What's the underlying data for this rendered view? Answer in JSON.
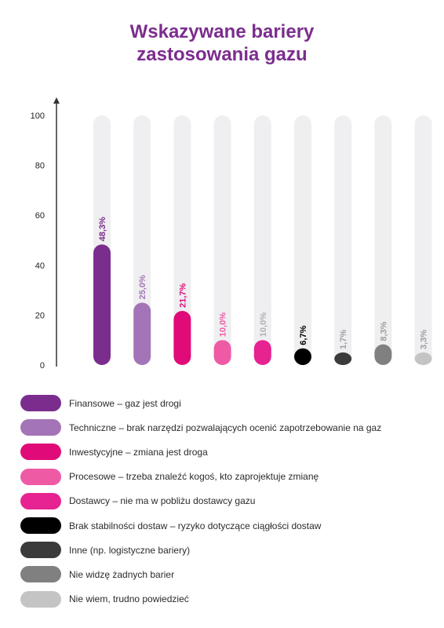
{
  "title": [
    "Wskazywane bariery",
    "zastosowania gazu"
  ],
  "chart_data": {
    "type": "bar",
    "title": "Wskazywane bariery zastosowania gazu",
    "ylim": [
      0,
      100
    ],
    "yticks": [
      0,
      20,
      40,
      60,
      80,
      100
    ],
    "grid": false,
    "legend_position": "bottom",
    "categories": [
      "Finansowe – gaz jest drogi",
      "Techniczne – brak narzędzi pozwalających ocenić zapotrzebowanie na gaz",
      "Inwestycyjne – zmiana jest droga",
      "Procesowe – trzeba znaleźć kogoś, kto zaprojektuje zmianę",
      "Dostawcy – nie ma w pobliżu dostawcy gazu",
      "Brak stabilności dostaw – ryzyko dotyczące ciągłości dostaw",
      "Inne (np. logistyczne bariery)",
      "Nie widzę żadnych barier",
      "Nie wiem, trudno powiedzieć"
    ],
    "values": [
      48.3,
      25.0,
      21.7,
      10.0,
      10.0,
      6.7,
      1.7,
      8.3,
      3.3
    ],
    "data_labels": [
      "48,3%",
      "25,0%",
      "21,7%",
      "10,0%",
      "10,0%",
      "6,7%",
      "1,7%",
      "8,3%",
      "3,3%"
    ],
    "colors": [
      "#7b2d8e",
      "#a474b8",
      "#e00b78",
      "#ef5aa5",
      "#e62391",
      "#000000",
      "#3b3b3b",
      "#808080",
      "#c4c4c4"
    ],
    "label_colors": [
      "#7b2d8e",
      "#a474b8",
      "#e00b78",
      "#ef5aa5",
      "#b0b0b0",
      "#000000",
      "#a0a0a0",
      "#a0a0a0",
      "#a0a0a0"
    ],
    "track_color": "#efeff1"
  }
}
